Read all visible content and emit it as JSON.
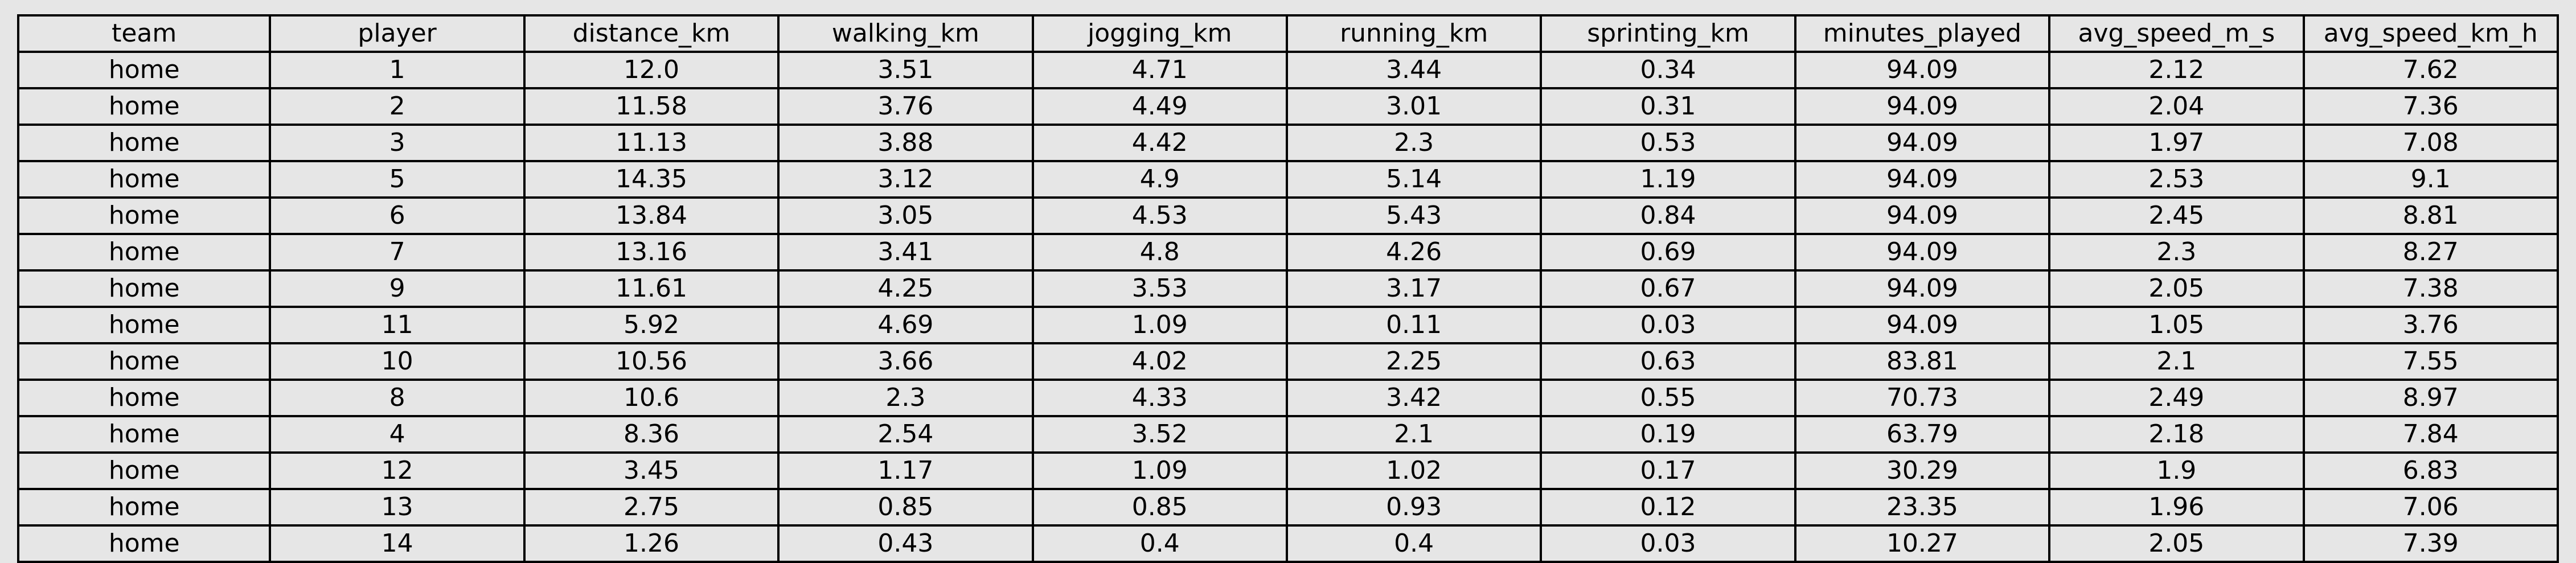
{
  "table": {
    "columns": [
      "team",
      "player",
      "distance_km",
      "walking_km",
      "jogging_km",
      "running_km",
      "sprinting_km",
      "minutes_played",
      "avg_speed_m_s",
      "avg_speed_km_h"
    ],
    "rows": [
      [
        "home",
        "1",
        "12.0",
        "3.51",
        "4.71",
        "3.44",
        "0.34",
        "94.09",
        "2.12",
        "7.62"
      ],
      [
        "home",
        "2",
        "11.58",
        "3.76",
        "4.49",
        "3.01",
        "0.31",
        "94.09",
        "2.04",
        "7.36"
      ],
      [
        "home",
        "3",
        "11.13",
        "3.88",
        "4.42",
        "2.3",
        "0.53",
        "94.09",
        "1.97",
        "7.08"
      ],
      [
        "home",
        "5",
        "14.35",
        "3.12",
        "4.9",
        "5.14",
        "1.19",
        "94.09",
        "2.53",
        "9.1"
      ],
      [
        "home",
        "6",
        "13.84",
        "3.05",
        "4.53",
        "5.43",
        "0.84",
        "94.09",
        "2.45",
        "8.81"
      ],
      [
        "home",
        "7",
        "13.16",
        "3.41",
        "4.8",
        "4.26",
        "0.69",
        "94.09",
        "2.3",
        "8.27"
      ],
      [
        "home",
        "9",
        "11.61",
        "4.25",
        "3.53",
        "3.17",
        "0.67",
        "94.09",
        "2.05",
        "7.38"
      ],
      [
        "home",
        "11",
        "5.92",
        "4.69",
        "1.09",
        "0.11",
        "0.03",
        "94.09",
        "1.05",
        "3.76"
      ],
      [
        "home",
        "10",
        "10.56",
        "3.66",
        "4.02",
        "2.25",
        "0.63",
        "83.81",
        "2.1",
        "7.55"
      ],
      [
        "home",
        "8",
        "10.6",
        "2.3",
        "4.33",
        "3.42",
        "0.55",
        "70.73",
        "2.49",
        "8.97"
      ],
      [
        "home",
        "4",
        "8.36",
        "2.54",
        "3.52",
        "2.1",
        "0.19",
        "63.79",
        "2.18",
        "7.84"
      ],
      [
        "home",
        "12",
        "3.45",
        "1.17",
        "1.09",
        "1.02",
        "0.17",
        "30.29",
        "1.9",
        "6.83"
      ],
      [
        "home",
        "13",
        "2.75",
        "0.85",
        "0.85",
        "0.93",
        "0.12",
        "23.35",
        "1.96",
        "7.06"
      ],
      [
        "home",
        "14",
        "1.26",
        "0.43",
        "0.4",
        "0.4",
        "0.03",
        "10.27",
        "2.05",
        "7.39"
      ]
    ]
  }
}
